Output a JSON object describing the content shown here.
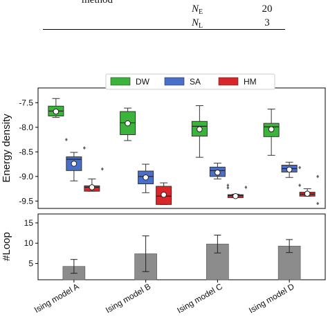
{
  "table_fragment": {
    "header": "method",
    "rows": [
      {
        "symbol": "N",
        "sub": "E",
        "value": 20
      },
      {
        "symbol": "N",
        "sub": "L",
        "value": 3
      }
    ]
  },
  "chart_data": [
    {
      "type": "box",
      "ylabel": "Energy density",
      "ylim": [
        -9.65,
        -7.2
      ],
      "yticks": [
        -7.5,
        -8.0,
        -8.5,
        -9.0,
        -9.5
      ],
      "yticklabels": [
        "-7.5",
        "-8.0",
        "-8.5",
        "-9.0",
        "-9.5"
      ],
      "series": [
        {
          "name": "DW",
          "color": "#3cb43c",
          "boxes": [
            {
              "whislo": -7.8,
              "q1": -7.77,
              "med": -7.67,
              "q3": -7.57,
              "whishi": -7.415,
              "mean": -7.68,
              "fliers": [
                -8.25
              ]
            },
            {
              "whislo": -8.27,
              "q1": -8.15,
              "med": -7.91,
              "q3": -7.68,
              "whishi": -7.61,
              "mean": -7.92,
              "fliers": []
            },
            {
              "whislo": -8.61,
              "q1": -8.18,
              "med": -7.98,
              "q3": -7.88,
              "whishi": -7.56,
              "mean": -8.04,
              "fliers": []
            },
            {
              "whislo": -8.57,
              "q1": -8.19,
              "med": -7.99,
              "q3": -7.92,
              "whishi": -7.63,
              "mean": -8.04,
              "fliers": []
            }
          ]
        },
        {
          "name": "SA",
          "color": "#4a6fc9",
          "boxes": [
            {
              "whislo": -9.09,
              "q1": -8.88,
              "med": -8.65,
              "q3": -8.6,
              "whishi": -8.51,
              "mean": -8.74,
              "fliers": [
                -8.42
              ]
            },
            {
              "whislo": -9.33,
              "q1": -9.15,
              "med": -9.0,
              "q3": -8.89,
              "whishi": -8.75,
              "mean": -9.02,
              "fliers": []
            },
            {
              "whislo": -9.05,
              "q1": -9.0,
              "med": -8.88,
              "q3": -8.81,
              "whishi": -8.73,
              "mean": -8.92,
              "fliers": [
                -9.18,
                -9.23
              ]
            },
            {
              "whislo": -9.02,
              "q1": -8.91,
              "med": -8.84,
              "q3": -8.77,
              "whishi": -8.71,
              "mean": -8.86,
              "fliers": [
                -8.82,
                -9.18
              ]
            }
          ]
        },
        {
          "name": "HM",
          "color": "#d9262a",
          "boxes": [
            {
              "whislo": -9.3,
              "q1": -9.3,
              "med": -9.22,
              "q3": -9.19,
              "whishi": -9.05,
              "mean": -9.22,
              "fliers": [
                -8.85
              ]
            },
            {
              "whislo": -9.57,
              "q1": -9.57,
              "med": -9.4,
              "q3": -9.2,
              "whishi": -9.13,
              "mean": -9.37,
              "fliers": []
            },
            {
              "whislo": -9.43,
              "q1": -9.43,
              "med": -9.39,
              "q3": -9.37,
              "whishi": -9.36,
              "mean": -9.4,
              "fliers": [
                -9.22
              ]
            },
            {
              "whislo": -9.4,
              "q1": -9.4,
              "med": -9.36,
              "q3": -9.32,
              "whishi": -9.25,
              "mean": -9.35,
              "fliers": [
                -9.0,
                -9.55
              ]
            }
          ]
        }
      ]
    },
    {
      "type": "bar",
      "ylabel": "#Loop",
      "ylim": [
        1,
        17.2
      ],
      "yticks": [
        5,
        10,
        15
      ],
      "color": "#8c8c8c",
      "categories": [
        "Ising model A",
        "Ising model B",
        "Ising model C",
        "Ising model D"
      ],
      "values": [
        4.3,
        7.4,
        9.8,
        9.3
      ],
      "errors": [
        1.7,
        4.4,
        2.2,
        1.6
      ]
    }
  ]
}
